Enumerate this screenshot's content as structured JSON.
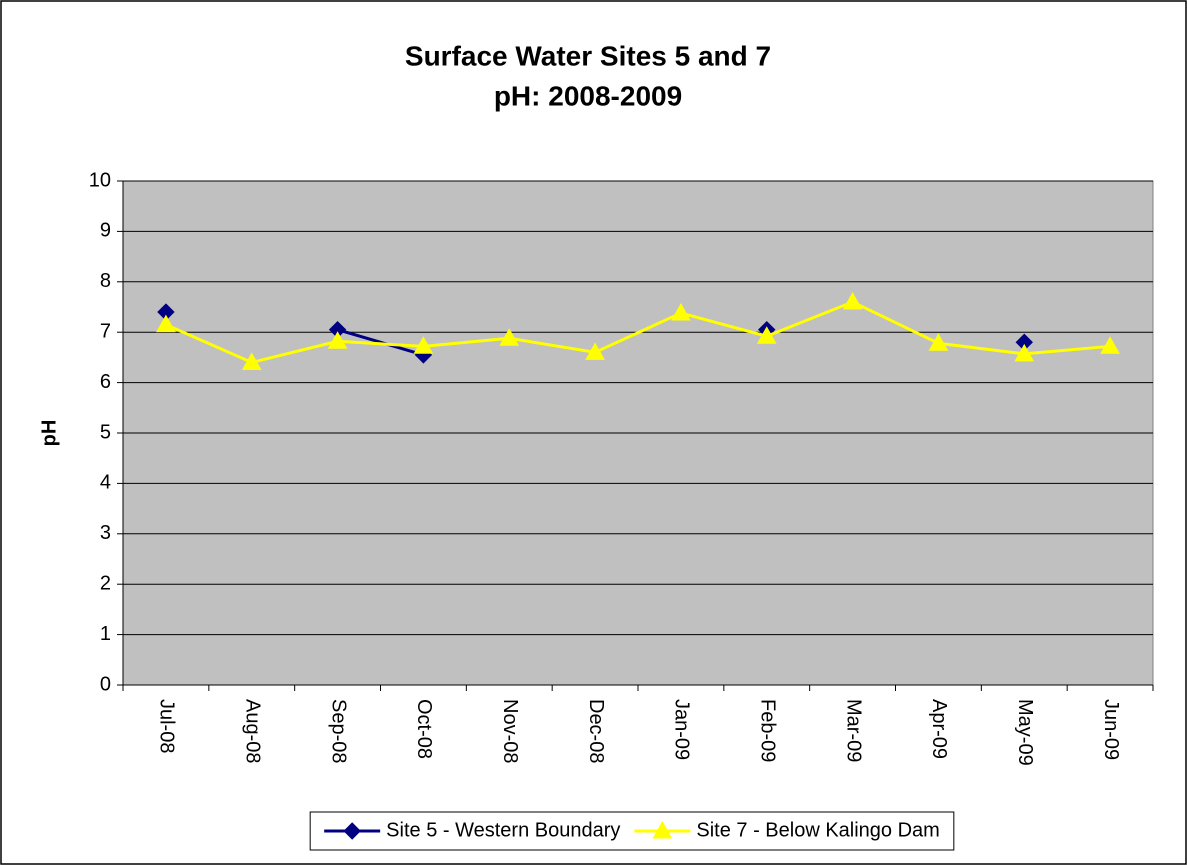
{
  "chart_data": {
    "type": "line",
    "title": [
      "Surface Water Sites 5 and 7",
      "pH: 2008-2009"
    ],
    "y_label": "pH",
    "categories": [
      "Jul-08",
      "Aug-08",
      "Sep-08",
      "Oct-08",
      "Nov-08",
      "Dec-08",
      "Jan-09",
      "Feb-09",
      "Mar-09",
      "Apr-09",
      "May-09",
      "Jun-09"
    ],
    "series": [
      {
        "name": "Site 5 - Western Boundary",
        "color": "#000080",
        "marker": "diamond",
        "values": [
          7.4,
          null,
          7.05,
          6.55,
          null,
          null,
          null,
          7.05,
          null,
          null,
          6.8,
          null
        ]
      },
      {
        "name": "Site 7 - Below Kalingo Dam",
        "color": "#ffff00",
        "marker": "triangle",
        "values": [
          7.15,
          6.4,
          6.82,
          6.72,
          6.88,
          6.6,
          7.38,
          6.92,
          7.6,
          6.78,
          6.57,
          6.72
        ]
      }
    ],
    "ylim": [
      0,
      10
    ],
    "yticks": [
      0,
      1,
      2,
      3,
      4,
      5,
      6,
      7,
      8,
      9,
      10
    ],
    "grid": true,
    "legend": "bottom"
  }
}
